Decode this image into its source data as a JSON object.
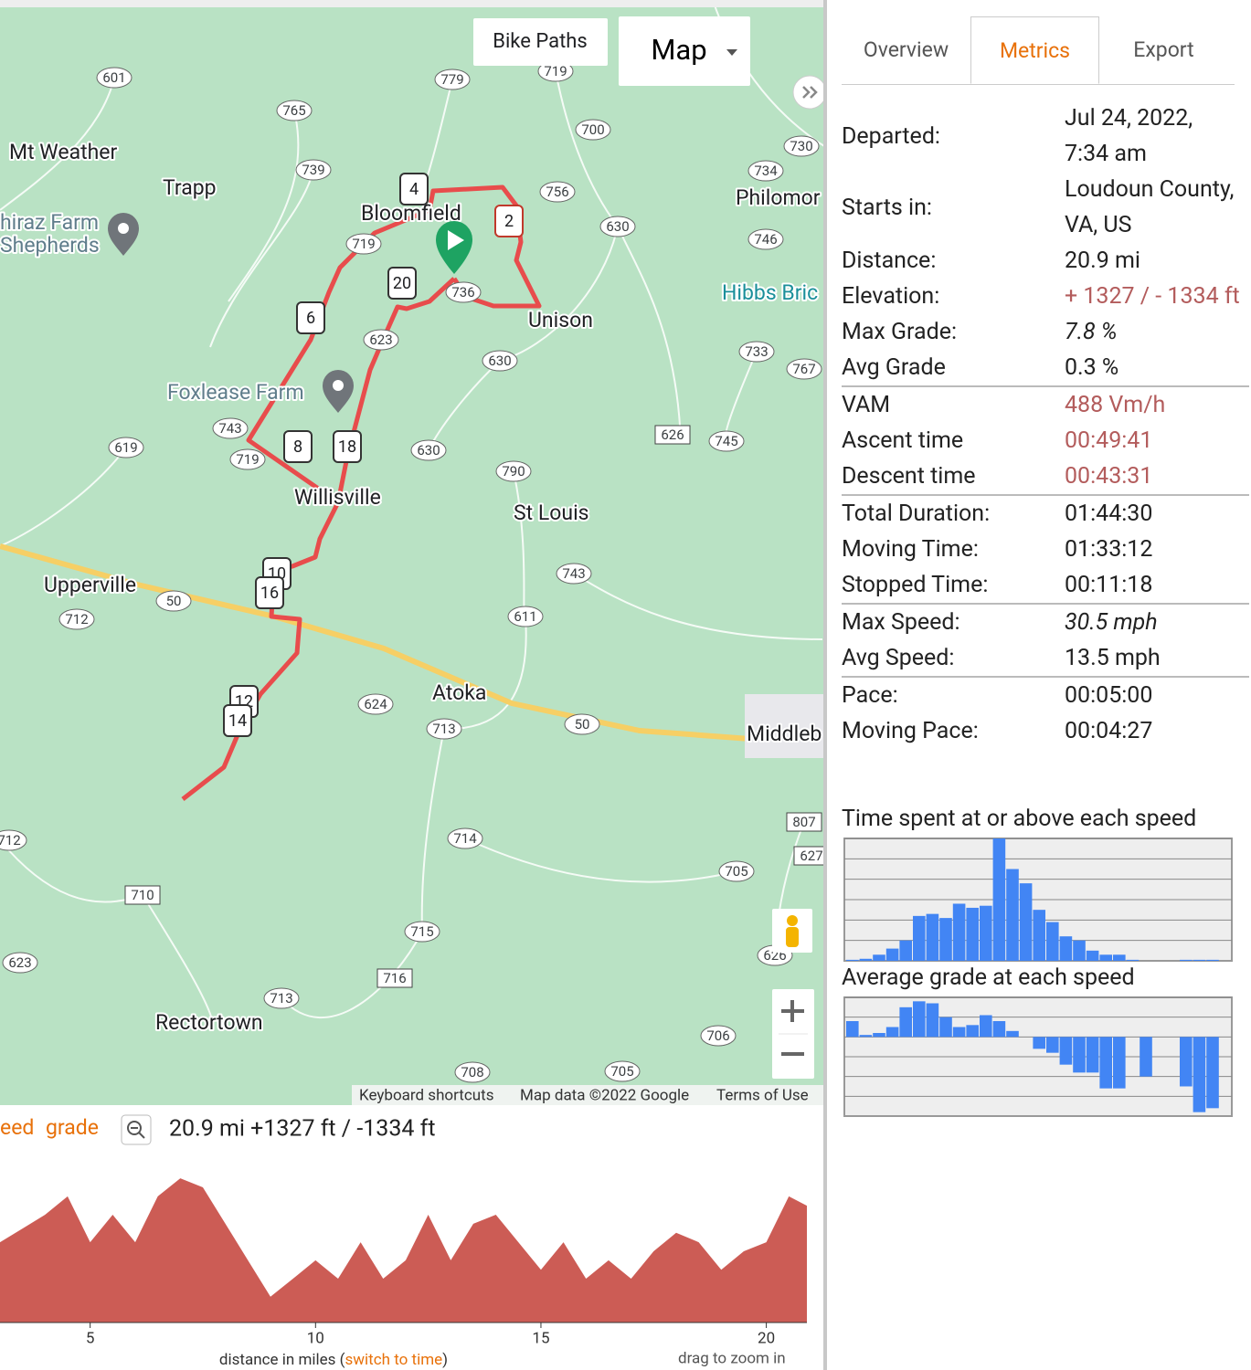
{
  "map": {
    "buttons": {
      "bike_paths": "Bike Paths",
      "map_type": "Map"
    },
    "places": [
      {
        "text": "Mt Weather",
        "color": "#202124"
      },
      {
        "text": "Trapp",
        "color": "#202124"
      },
      {
        "text": "hiraz Farm",
        "color": "#5f7d8b"
      },
      {
        "text": "Shepherds",
        "color": "#5f7d8b"
      },
      {
        "text": "Bloomfield",
        "color": "#202124"
      },
      {
        "text": "Philomor",
        "color": "#202124"
      },
      {
        "text": "Unison",
        "color": "#202124"
      },
      {
        "text": "Hibbs Bric",
        "color": "#1a8f9a"
      },
      {
        "text": "Foxlease Farm",
        "color": "#5f7d8b"
      },
      {
        "text": "Willisville",
        "color": "#202124"
      },
      {
        "text": "St Louis",
        "color": "#202124"
      },
      {
        "text": "Upperville",
        "color": "#202124"
      },
      {
        "text": "Atoka",
        "color": "#202124"
      },
      {
        "text": "Middleb",
        "color": "#202124"
      },
      {
        "text": "Rectortown",
        "color": "#202124"
      }
    ],
    "routes": [
      "601",
      "765",
      "779",
      "719",
      "700",
      "730",
      "739",
      "756",
      "734",
      "630",
      "746",
      "719",
      "736",
      "623",
      "630",
      "733",
      "767",
      "743",
      "719",
      "630",
      "790",
      "626",
      "745",
      "619",
      "50",
      "712",
      "743",
      "611",
      "624",
      "713",
      "50",
      "714",
      "807",
      "705",
      "710",
      "715",
      "716",
      "713",
      "626",
      "623",
      "712",
      "706",
      "708",
      "705",
      "627"
    ],
    "markers": [
      "4",
      "2",
      "20",
      "6",
      "8",
      "18",
      "10",
      "16",
      "12",
      "14"
    ],
    "attribution": [
      "Keyboard shortcuts",
      "Map data ©2022 Google",
      "Terms of Use"
    ]
  },
  "tabs": [
    "Overview",
    "Metrics",
    "Export"
  ],
  "active_tab": 1,
  "metrics": [
    [
      {
        "label": "Departed:",
        "value": "Jul 24, 2022, 7:34 am"
      },
      {
        "label": "Starts in:",
        "value": "Loudoun County, VA, US"
      },
      {
        "label": "Distance:",
        "value": "20.9 mi"
      },
      {
        "label": "Elevation:",
        "value": "+ 1327 / - 1334 ft",
        "color": "#b35c5c"
      },
      {
        "label": "Max Grade:",
        "value": "7.8 %",
        "italic": true
      },
      {
        "label": "Avg Grade",
        "value": "0.3 %"
      }
    ],
    [
      {
        "label": "VAM",
        "value": "488 Vm/h",
        "color": "#b35c5c"
      },
      {
        "label": "Ascent time",
        "value": "00:49:41",
        "color": "#b35c5c"
      },
      {
        "label": "Descent time",
        "value": "00:43:31",
        "color": "#b35c5c"
      }
    ],
    [
      {
        "label": "Total Duration:",
        "value": "01:44:30"
      },
      {
        "label": "Moving Time:",
        "value": "01:33:12"
      },
      {
        "label": "Stopped Time:",
        "value": "00:11:18"
      }
    ],
    [
      {
        "label": "Max Speed:",
        "value": "30.5 mph",
        "italic": true
      },
      {
        "label": "Avg Speed:",
        "value": "13.5 mph"
      }
    ],
    [
      {
        "label": "Pace:",
        "value": "00:05:00"
      },
      {
        "label": "Moving Pace:",
        "value": "00:04:27"
      }
    ]
  ],
  "profile": {
    "modes": [
      "eed",
      "grade"
    ],
    "summary": "20.9 mi +1327 ft / -1334 ft",
    "xlabel_parts": [
      "distance in miles (",
      "switch to time",
      ")"
    ],
    "hint": "drag to zoom in"
  },
  "chart_data": [
    {
      "type": "area",
      "color": "#cc5c55",
      "x": [
        3,
        3.5,
        4,
        4.5,
        5,
        5.5,
        6,
        6.5,
        7,
        7.5,
        8,
        8.5,
        9,
        9.5,
        10,
        10.5,
        11,
        11.5,
        12,
        12.5,
        13,
        13.5,
        14,
        14.5,
        15,
        15.5,
        16,
        16.5,
        17,
        17.5,
        18,
        18.5,
        19,
        19.5,
        20,
        20.5,
        20.9
      ],
      "values": [
        487,
        519,
        551,
        594,
        487,
        551,
        487,
        594,
        636,
        615,
        530,
        445,
        360,
        402,
        445,
        402,
        487,
        402,
        445,
        551,
        445,
        530,
        551,
        487,
        423,
        487,
        402,
        445,
        402,
        466,
        509,
        487,
        423,
        466,
        487,
        594,
        572
      ],
      "xlim": [
        3,
        20.9
      ],
      "ylim": [
        300,
        700
      ],
      "xticks": [
        5,
        10,
        15,
        20
      ]
    },
    {
      "type": "bar",
      "title": "Time spent at or above each speed",
      "color": "#4285f4",
      "values": [
        0.05,
        0.1,
        0.3,
        0.6,
        1.0,
        2.2,
        2.3,
        2.1,
        2.8,
        2.6,
        2.7,
        6.0,
        4.5,
        3.8,
        2.5,
        1.9,
        1.2,
        1.0,
        0.5,
        0.3,
        0.3,
        0.05,
        0,
        0,
        0,
        0.05,
        0.05,
        0.05
      ],
      "ylim": [
        0,
        6
      ],
      "grid_lines": [
        1,
        2,
        3,
        4,
        5,
        6
      ]
    },
    {
      "type": "bar",
      "title": "Average grade at each speed",
      "color": "#4285f4",
      "values": [
        0.8,
        0.1,
        0.2,
        0.5,
        1.5,
        1.8,
        1.7,
        1.0,
        0.5,
        0.6,
        1.1,
        0.8,
        0.3,
        0,
        -0.6,
        -0.8,
        -1.4,
        -1.8,
        -1.8,
        -2.6,
        -2.6,
        0,
        -2.0,
        0,
        0,
        -2.5,
        -3.8,
        -3.6
      ],
      "ylim": [
        -4,
        2
      ],
      "grid_lines": [
        -3,
        -2,
        -1,
        0,
        1,
        2
      ]
    }
  ]
}
